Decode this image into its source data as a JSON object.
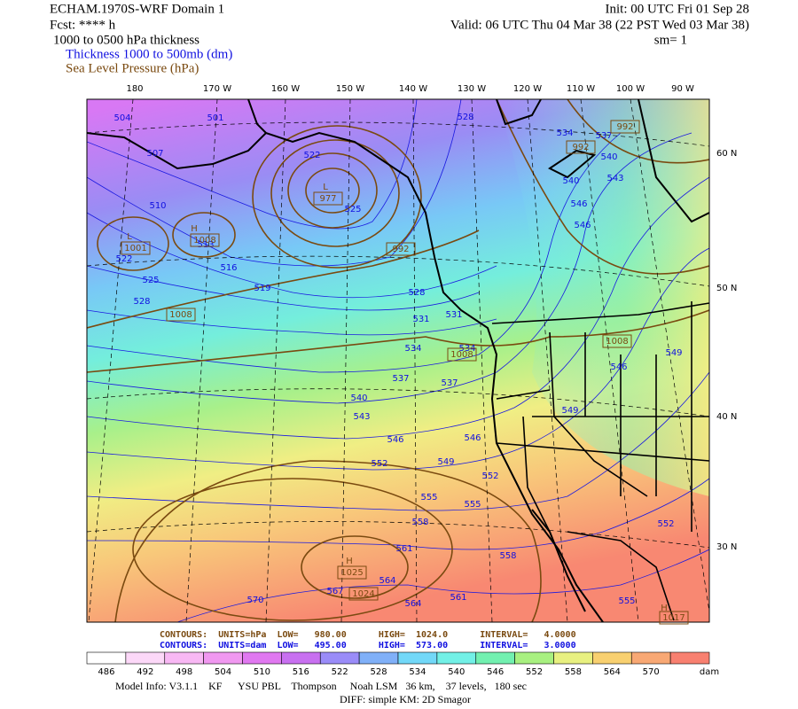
{
  "header": {
    "title": "ECHAM.1970S-WRF Domain 1",
    "fcst": "Fcst: **** h",
    "field": "1000 to 0500 hPa thickness",
    "legend_thickness": "Thickness 1000 to 500mb (dm)",
    "legend_slp": "Sea Level Pressure (hPa)",
    "init": "Init: 00 UTC Fri 01 Sep 28",
    "valid": "Valid: 06 UTC Thu 04 Mar 38 (22 PST Wed 03 Mar 38)",
    "smooth": "sm= 1"
  },
  "map": {
    "lon_labels": [
      "180",
      "170 W",
      "160 W",
      "150 W",
      "140 W",
      "130 W",
      "120 W",
      "110 W",
      "100 W",
      "90 W"
    ],
    "lat_labels": [
      "60 N",
      "50 N",
      "40 N",
      "30 N"
    ],
    "thickness_labels": [
      504,
      501,
      507,
      510,
      513,
      516,
      519,
      522,
      525,
      528,
      525,
      528,
      531,
      531,
      534,
      534,
      537,
      537,
      540,
      543,
      546,
      546,
      549,
      549,
      552,
      552,
      555,
      555,
      558,
      558,
      561,
      561,
      564,
      564,
      567,
      570,
      534,
      537,
      540,
      540,
      543,
      546,
      546,
      546,
      549,
      552,
      555,
      528,
      522
    ],
    "pressure_labels": [
      1001,
      1008,
      977,
      992,
      1008,
      1008,
      1008,
      992,
      992,
      1025,
      1024,
      1017
    ],
    "centers": [
      "L",
      "H",
      "L",
      "H",
      "H"
    ]
  },
  "contour_info": {
    "slp": "CONTOURS:  UNITS=hPa  LOW=   980.00      HIGH=  1024.0      INTERVAL=   4.0000",
    "thickness": "CONTOURS:  UNITS=dam  LOW=   495.00      HIGH=  573.00      INTERVAL=   3.0000"
  },
  "colorbar": {
    "labels": [
      486,
      492,
      498,
      504,
      510,
      516,
      522,
      528,
      534,
      540,
      546,
      552,
      558,
      564,
      570
    ],
    "units": "dam"
  },
  "footer": {
    "model": "Model Info: V3.1.1    KF      YSU PBL    Thompson     Noah LSM   36 km,    37 levels,   180 sec",
    "diff": "DIFF: simple KM: 2D Smagor"
  }
}
